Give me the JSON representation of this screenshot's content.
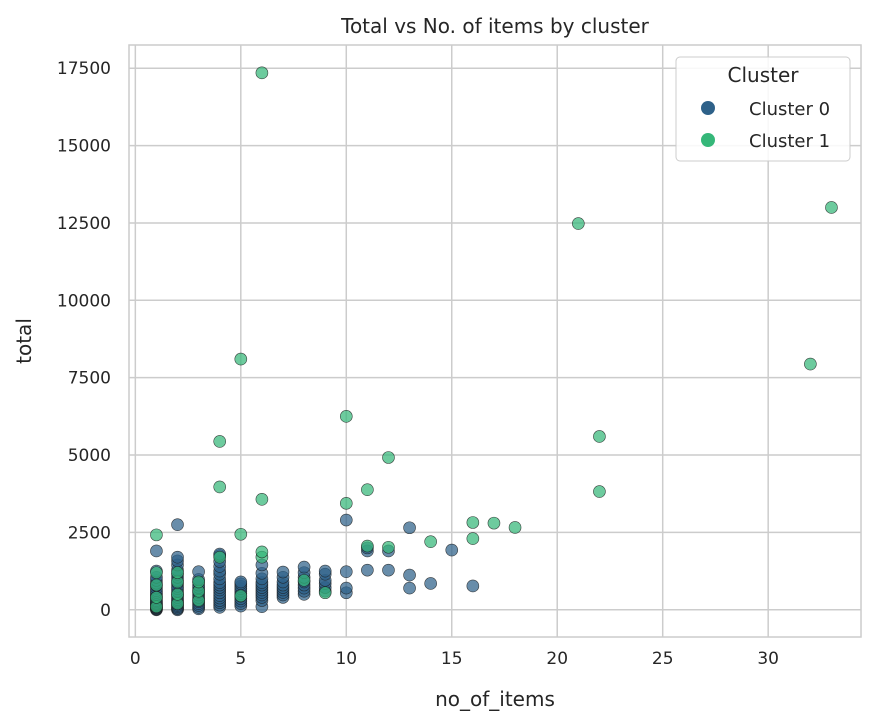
{
  "chart_data": {
    "type": "scatter",
    "title": "Total vs No. of items by cluster",
    "xlabel": "no_of_items",
    "ylabel": "total",
    "xlim": [
      -0.3,
      34.4
    ],
    "ylim": [
      -880,
      18250
    ],
    "xticks": [
      0,
      5,
      10,
      15,
      20,
      25,
      30
    ],
    "yticks": [
      0,
      2500,
      5000,
      7500,
      10000,
      12500,
      15000,
      17500
    ],
    "grid": true,
    "legend": {
      "title": "Cluster",
      "placement": "top-right"
    },
    "series": [
      {
        "name": "Cluster 0",
        "color": "#2e6189",
        "points": [
          [
            1,
            0
          ],
          [
            1,
            20
          ],
          [
            1,
            40
          ],
          [
            1,
            60
          ],
          [
            1,
            80
          ],
          [
            1,
            100
          ],
          [
            1,
            130
          ],
          [
            1,
            160
          ],
          [
            1,
            190
          ],
          [
            1,
            220
          ],
          [
            1,
            260
          ],
          [
            1,
            300
          ],
          [
            1,
            350
          ],
          [
            1,
            400
          ],
          [
            1,
            450
          ],
          [
            1,
            500
          ],
          [
            1,
            560
          ],
          [
            1,
            620
          ],
          [
            1,
            700
          ],
          [
            1,
            780
          ],
          [
            1,
            860
          ],
          [
            1,
            950
          ],
          [
            1,
            1050
          ],
          [
            1,
            1250
          ],
          [
            1,
            1900
          ],
          [
            2,
            0
          ],
          [
            2,
            30
          ],
          [
            2,
            60
          ],
          [
            2,
            100
          ],
          [
            2,
            140
          ],
          [
            2,
            180
          ],
          [
            2,
            230
          ],
          [
            2,
            280
          ],
          [
            2,
            330
          ],
          [
            2,
            400
          ],
          [
            2,
            460
          ],
          [
            2,
            520
          ],
          [
            2,
            600
          ],
          [
            2,
            680
          ],
          [
            2,
            760
          ],
          [
            2,
            850
          ],
          [
            2,
            950
          ],
          [
            2,
            1050
          ],
          [
            2,
            1150
          ],
          [
            2,
            1280
          ],
          [
            2,
            1450
          ],
          [
            2,
            1580
          ],
          [
            2,
            1700
          ],
          [
            2,
            2750
          ],
          [
            3,
            30
          ],
          [
            3,
            80
          ],
          [
            3,
            140
          ],
          [
            3,
            200
          ],
          [
            3,
            260
          ],
          [
            3,
            330
          ],
          [
            3,
            400
          ],
          [
            3,
            480
          ],
          [
            3,
            560
          ],
          [
            3,
            640
          ],
          [
            3,
            720
          ],
          [
            3,
            800
          ],
          [
            3,
            900
          ],
          [
            3,
            980
          ],
          [
            3,
            1230
          ],
          [
            4,
            80
          ],
          [
            4,
            150
          ],
          [
            4,
            230
          ],
          [
            4,
            300
          ],
          [
            4,
            380
          ],
          [
            4,
            460
          ],
          [
            4,
            550
          ],
          [
            4,
            640
          ],
          [
            4,
            720
          ],
          [
            4,
            800
          ],
          [
            4,
            880
          ],
          [
            4,
            1000
          ],
          [
            4,
            1150
          ],
          [
            4,
            1250
          ],
          [
            4,
            1400
          ],
          [
            4,
            1560
          ],
          [
            4,
            1750
          ],
          [
            4,
            1800
          ],
          [
            5,
            120
          ],
          [
            5,
            200
          ],
          [
            5,
            280
          ],
          [
            5,
            360
          ],
          [
            5,
            440
          ],
          [
            5,
            520
          ],
          [
            5,
            600
          ],
          [
            5,
            680
          ],
          [
            5,
            760
          ],
          [
            5,
            840
          ],
          [
            5,
            900
          ],
          [
            6,
            100
          ],
          [
            6,
            300
          ],
          [
            6,
            400
          ],
          [
            6,
            480
          ],
          [
            6,
            560
          ],
          [
            6,
            640
          ],
          [
            6,
            720
          ],
          [
            6,
            800
          ],
          [
            6,
            880
          ],
          [
            6,
            1000
          ],
          [
            6,
            1180
          ],
          [
            6,
            1450
          ],
          [
            7,
            400
          ],
          [
            7,
            480
          ],
          [
            7,
            560
          ],
          [
            7,
            640
          ],
          [
            7,
            720
          ],
          [
            7,
            800
          ],
          [
            7,
            900
          ],
          [
            7,
            1050
          ],
          [
            7,
            1220
          ],
          [
            8,
            500
          ],
          [
            8,
            600
          ],
          [
            8,
            700
          ],
          [
            8,
            800
          ],
          [
            8,
            900
          ],
          [
            8,
            1050
          ],
          [
            8,
            1200
          ],
          [
            8,
            1380
          ],
          [
            9,
            600
          ],
          [
            9,
            720
          ],
          [
            9,
            850
          ],
          [
            9,
            950
          ],
          [
            9,
            1150
          ],
          [
            9,
            1250
          ],
          [
            10,
            550
          ],
          [
            10,
            700
          ],
          [
            10,
            1230
          ],
          [
            10,
            2900
          ],
          [
            11,
            1280
          ],
          [
            11,
            1900
          ],
          [
            11,
            2000
          ],
          [
            12,
            1280
          ],
          [
            12,
            1900
          ],
          [
            13,
            700
          ],
          [
            13,
            1120
          ],
          [
            13,
            2650
          ],
          [
            14,
            850
          ],
          [
            15,
            1930
          ],
          [
            16,
            770
          ]
        ]
      },
      {
        "name": "Cluster 1",
        "color": "#35b779",
        "points": [
          [
            1,
            100
          ],
          [
            1,
            400
          ],
          [
            1,
            800
          ],
          [
            1,
            1200
          ],
          [
            1,
            2420
          ],
          [
            2,
            200
          ],
          [
            2,
            500
          ],
          [
            2,
            900
          ],
          [
            2,
            1200
          ],
          [
            3,
            300
          ],
          [
            3,
            600
          ],
          [
            3,
            900
          ],
          [
            4,
            1700
          ],
          [
            4,
            3970
          ],
          [
            4,
            5440
          ],
          [
            5,
            450
          ],
          [
            5,
            2440
          ],
          [
            5,
            8100
          ],
          [
            6,
            1700
          ],
          [
            6,
            1870
          ],
          [
            6,
            3570
          ],
          [
            6,
            17350
          ],
          [
            8,
            950
          ],
          [
            9,
            550
          ],
          [
            10,
            3440
          ],
          [
            10,
            6250
          ],
          [
            11,
            2060
          ],
          [
            11,
            3880
          ],
          [
            12,
            2020
          ],
          [
            12,
            4920
          ],
          [
            14,
            2200
          ],
          [
            16,
            2300
          ],
          [
            16,
            2820
          ],
          [
            17,
            2800
          ],
          [
            18,
            2660
          ],
          [
            21,
            12480
          ],
          [
            22,
            3820
          ],
          [
            22,
            5600
          ],
          [
            32,
            7940
          ],
          [
            33,
            13000
          ]
        ]
      }
    ]
  }
}
